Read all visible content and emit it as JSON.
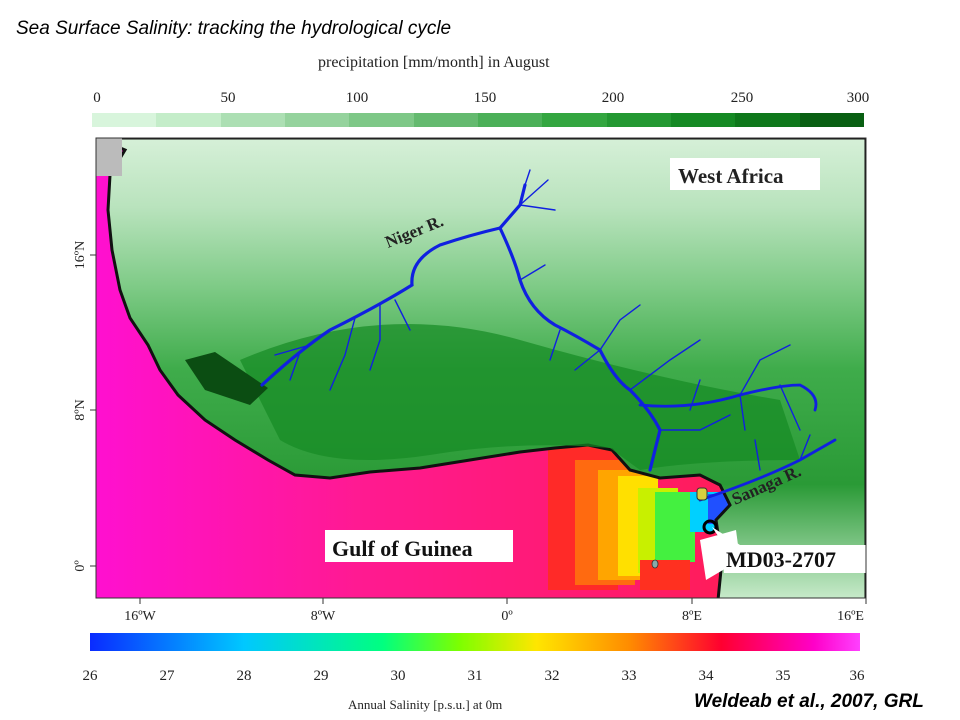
{
  "title": "Sea Surface Salinity: tracking the hydrological cycle",
  "citation": "Weldeab et al., 2007, GRL",
  "precipitation_scale": {
    "title": "precipitation [mm/month] in August",
    "ticks": [
      "0",
      "50",
      "100",
      "150",
      "200",
      "250",
      "300"
    ],
    "colors": [
      "#d8f5dc",
      "#c4edc9",
      "#acdfb3",
      "#95d39d",
      "#7ec887",
      "#64ba6f",
      "#4bb058",
      "#33a640",
      "#239832",
      "#158a24",
      "#0e781b",
      "#095f12"
    ]
  },
  "salinity_scale": {
    "title": "Annual Salinity [p.s.u.] at 0m",
    "ticks": [
      "26",
      "27",
      "28",
      "29",
      "30",
      "31",
      "32",
      "33",
      "34",
      "35",
      "36"
    ]
  },
  "map": {
    "region_label": "West Africa",
    "ocean_label": "Gulf of Guinea",
    "core_label": "MD03-2707",
    "rivers": [
      "Niger R.",
      "Sanaga R."
    ],
    "longitude_ticks": [
      "16ºW",
      "8ºW",
      "0º",
      "8ºE",
      "16ºE"
    ],
    "latitude_ticks": [
      "16ºN",
      "8ºN",
      "0º"
    ],
    "colors": {
      "river": "#1020e0",
      "coast": "#111111",
      "ocean_high_salinity": "#ff1a8c",
      "core_marker": "#000000"
    }
  }
}
